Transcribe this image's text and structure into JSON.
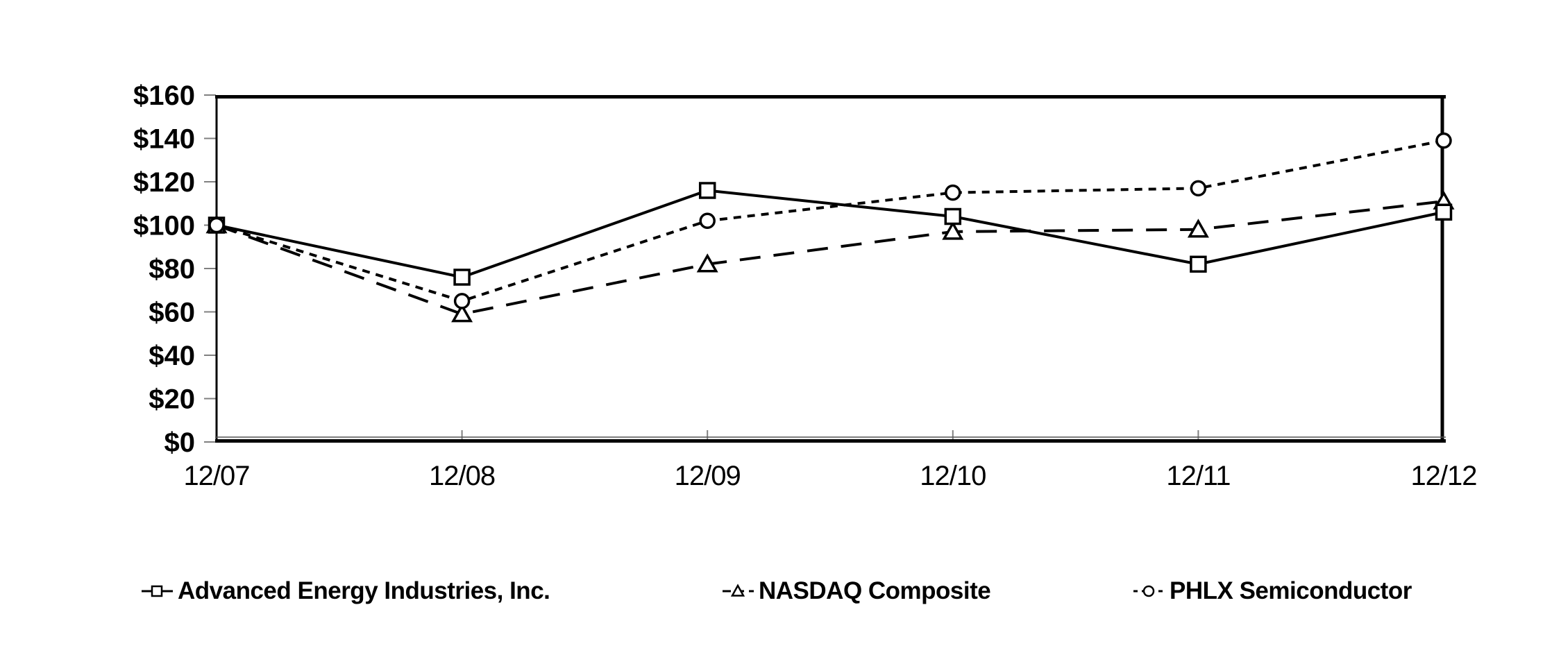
{
  "chart_data": {
    "type": "line",
    "title": "",
    "x_categories": [
      "12/07",
      "12/08",
      "12/09",
      "12/10",
      "12/11",
      "12/12"
    ],
    "y_axis": {
      "min": 0,
      "max": 160,
      "step": 20,
      "prefix": "$",
      "tick_labels": [
        "$0",
        "$20",
        "$40",
        "$60",
        "$80",
        "$100",
        "$120",
        "$140",
        "$160"
      ]
    },
    "series": [
      {
        "name": "Advanced Energy Industries, Inc.",
        "marker": "square",
        "line_style": "solid",
        "color": "#000000",
        "values": [
          100,
          76,
          116,
          104,
          82,
          106
        ]
      },
      {
        "name": "NASDAQ Composite",
        "marker": "triangle",
        "line_style": "long-dash",
        "color": "#000000",
        "values": [
          100,
          59,
          82,
          97,
          98,
          111
        ]
      },
      {
        "name": "PHLX Semiconductor",
        "marker": "circle",
        "line_style": "dotted",
        "color": "#000000",
        "values": [
          100,
          65,
          102,
          115,
          117,
          139
        ]
      }
    ],
    "legend_position": "bottom",
    "grid": false,
    "axis_tick_color": "#808080"
  }
}
